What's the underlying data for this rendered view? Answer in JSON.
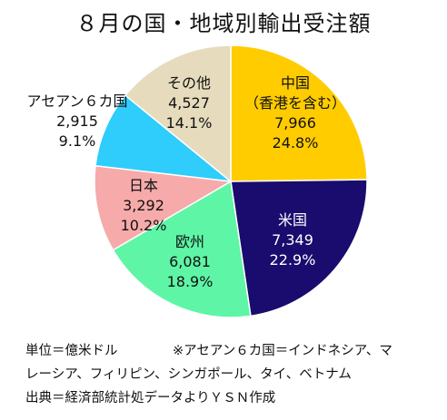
{
  "chart_data": {
    "type": "pie",
    "title": "８月の国・地域別輸出受注額",
    "slices": [
      {
        "lines": [
          "中国",
          "（香港を含む）"
        ],
        "value": 7966,
        "value_label": "7,966",
        "percent": 24.8,
        "percent_label": "24.8%",
        "color": "#FFCC00",
        "text_color": "#111111"
      },
      {
        "lines": [
          "米国"
        ],
        "value": 7349,
        "value_label": "7,349",
        "percent": 22.9,
        "percent_label": "22.9%",
        "color": "#1A0B6E",
        "text_color": "#FFFFFF"
      },
      {
        "lines": [
          "欧州"
        ],
        "value": 6081,
        "value_label": "6,081",
        "percent": 18.9,
        "percent_label": "18.9%",
        "color": "#5EF5A6",
        "text_color": "#111111"
      },
      {
        "lines": [
          "日本"
        ],
        "value": 3292,
        "value_label": "3,292",
        "percent": 10.2,
        "percent_label": "10.2%",
        "color": "#F6AAAA",
        "text_color": "#111111"
      },
      {
        "lines": [
          "アセアン６カ国"
        ],
        "value": 2915,
        "value_label": "2,915",
        "percent": 9.1,
        "percent_label": "9.1%",
        "color": "#2ECDFB",
        "text_color": "#111111"
      },
      {
        "lines": [
          "その他"
        ],
        "value": 4527,
        "value_label": "4,527",
        "percent": 14.1,
        "percent_label": "14.1%",
        "color": "#E6DBBD",
        "text_color": "#111111"
      }
    ]
  },
  "notes": {
    "unit": "単位＝億米ドル",
    "asean_note_line1": "※アセアン６カ国＝インドネシア、マ",
    "asean_note_line2": "レーシア、フィリピン、シンガポール、タイ、ベトナム",
    "source": "出典＝経済部統計処データよりＹＳＮ作成"
  }
}
